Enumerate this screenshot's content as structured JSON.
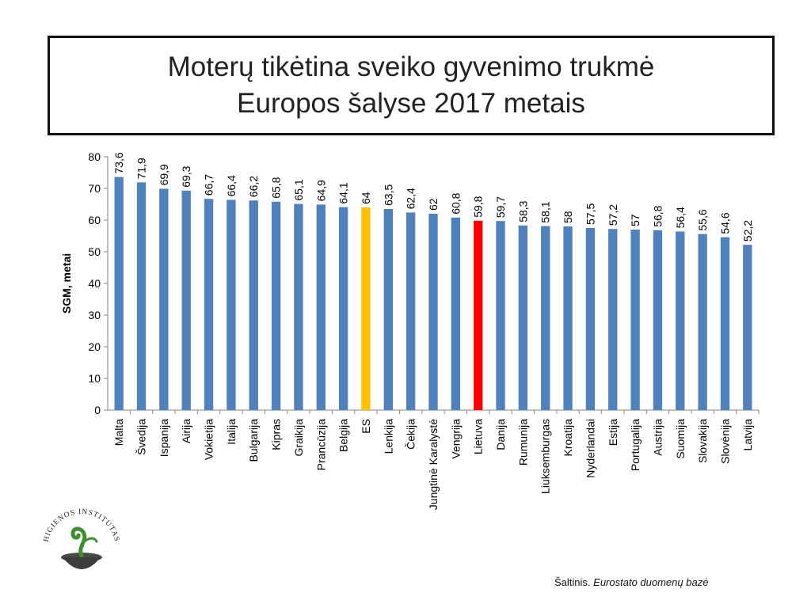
{
  "title": {
    "line1": "Moterų tikėtina sveiko gyvenimo trukmė",
    "line2": "Europos šalyse 2017 metais"
  },
  "source": {
    "prefix": "Šaltinis.",
    "name": "Eurostato duomenų bazė"
  },
  "logo": {
    "text": "HIGIENOS INSTITUTAS"
  },
  "colors": {
    "bar": "#4F81BD",
    "bar_es": "#FFC000",
    "bar_lithuania": "#FF0000",
    "axis": "#868686",
    "text": "#000000"
  },
  "chart_data": {
    "type": "bar",
    "ylabel": "SGM, metai",
    "xlabel": "",
    "ylim": [
      0,
      80
    ],
    "yticks": [
      0,
      10,
      20,
      30,
      40,
      50,
      60,
      70,
      80
    ],
    "grid": false,
    "legend": "none",
    "categories": [
      "Malta",
      "Švedija",
      "Ispanija",
      "Airija",
      "Vokietija",
      "Italija",
      "Bulgarija",
      "Kipras",
      "Graikija",
      "Prancūzija",
      "Belgija",
      "ES",
      "Lenkija",
      "Čekija",
      "Jungtinė Karalystė",
      "Vengrija",
      "Lietuva",
      "Danija",
      "Rumunija",
      "Liuksemburgas",
      "Kroatija",
      "Nyderlandai",
      "Estija",
      "Portugalija",
      "Austrija",
      "Suomija",
      "Slovakija",
      "Slovėnija",
      "Latvija"
    ],
    "values": [
      73.6,
      71.9,
      69.9,
      69.3,
      66.7,
      66.4,
      66.2,
      65.8,
      65.1,
      64.9,
      64.1,
      64,
      63.5,
      62.4,
      62,
      60.8,
      59.8,
      59.7,
      58.3,
      58.1,
      58,
      57.5,
      57.2,
      57,
      56.8,
      56.4,
      55.6,
      54.6,
      52.2
    ],
    "value_labels": [
      "73,6",
      "71,9",
      "69,9",
      "69,3",
      "66,7",
      "66,4",
      "66,2",
      "65,8",
      "65,1",
      "64,9",
      "64,1",
      "64",
      "63,5",
      "62,4",
      "62",
      "60,8",
      "59,8",
      "59,7",
      "58,3",
      "58,1",
      "58",
      "57,5",
      "57,2",
      "57",
      "56,8",
      "56,4",
      "55,6",
      "54,6",
      "52,2"
    ],
    "highlight": {
      "ES": "bar_es",
      "Lietuva": "bar_lithuania"
    }
  }
}
